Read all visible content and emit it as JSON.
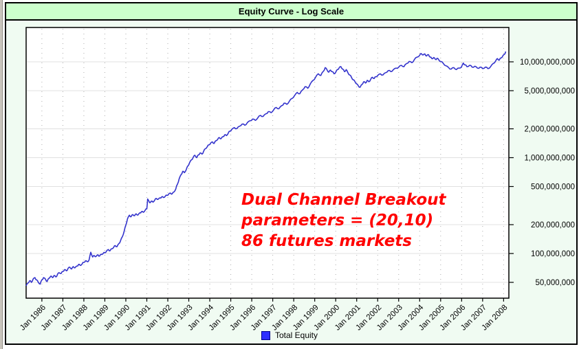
{
  "window": {
    "title": "Equity Curve - Log Scale"
  },
  "colors": {
    "title_bar_bg": "#ccffcc",
    "panel_bg": "#f0fbf2",
    "plot_bg": "#ffffff",
    "line": "#3333cc",
    "legend_swatch": "#2e2eff",
    "annotation_text": "#ff0000",
    "grid_major": "#e0e0e0",
    "grid_minor_dots": "#ababab",
    "axis": "#000000"
  },
  "annotation": {
    "lines": [
      "Dual Channel Breakout",
      "parameters = (20,10)",
      "86 futures markets"
    ]
  },
  "legend": {
    "label": "Total Equity"
  },
  "chart_data": {
    "type": "line",
    "title": "Equity Curve - Log Scale",
    "legend_position": "bottom-center",
    "grid": "on",
    "x_axis": {
      "start_year": 1985.25,
      "end_year": 2008.25,
      "tick_years": [
        1986,
        1987,
        1988,
        1989,
        1990,
        1991,
        1992,
        1993,
        1994,
        1995,
        1996,
        1997,
        1998,
        1999,
        2000,
        2001,
        2002,
        2003,
        2004,
        2005,
        2006,
        2007,
        2008
      ],
      "ticks": [
        "Jan 1986",
        "Jan 1987",
        "Jan 1988",
        "Jan 1989",
        "Jan 1990",
        "Jan 1991",
        "Jan 1992",
        "Jan 1993",
        "Jan 1994",
        "Jan 1995",
        "Jan 1996",
        "Jan 1997",
        "Jan 1998",
        "Jan 1999",
        "Jan 2000",
        "Jan 2001",
        "Jan 2002",
        "Jan 2003",
        "Jan 2004",
        "Jan 2005",
        "Jan 2006",
        "Jan 2007",
        "Jan 2008"
      ]
    },
    "y_axis": {
      "scale": "log",
      "unit": "USD",
      "range_usd": [
        40000000,
        15000000000
      ],
      "ticks": [
        {
          "value_musd": 10000,
          "label": "10,000,000,000"
        },
        {
          "value_musd": 5000,
          "label": "5,000,000,000"
        },
        {
          "value_musd": 2000,
          "label": "2,000,000,000"
        },
        {
          "value_musd": 1000,
          "label": "1,000,000,000"
        },
        {
          "value_musd": 500,
          "label": "500,000,000"
        },
        {
          "value_musd": 200,
          "label": "200,000,000"
        },
        {
          "value_musd": 100,
          "label": "100,000,000"
        },
        {
          "value_musd": 50,
          "label": "50,000,000"
        }
      ]
    },
    "series": [
      {
        "name": "Total Equity",
        "color": "#3333cc",
        "unit": "USD millions",
        "points": [
          [
            1985.25,
            46
          ],
          [
            1985.33,
            49
          ],
          [
            1985.42,
            52
          ],
          [
            1985.5,
            50
          ],
          [
            1985.58,
            54
          ],
          [
            1985.67,
            56
          ],
          [
            1985.75,
            53
          ],
          [
            1985.83,
            50
          ],
          [
            1985.92,
            48
          ],
          [
            1986,
            53
          ],
          [
            1986.08,
            56
          ],
          [
            1986.17,
            54
          ],
          [
            1986.25,
            51
          ],
          [
            1986.33,
            55
          ],
          [
            1986.42,
            58
          ],
          [
            1986.5,
            56
          ],
          [
            1986.58,
            59
          ],
          [
            1986.67,
            57
          ],
          [
            1986.75,
            61
          ],
          [
            1986.83,
            63
          ],
          [
            1986.92,
            62
          ],
          [
            1987,
            65
          ],
          [
            1987.08,
            68
          ],
          [
            1987.17,
            66
          ],
          [
            1987.25,
            70
          ],
          [
            1987.33,
            72
          ],
          [
            1987.42,
            69
          ],
          [
            1987.5,
            73
          ],
          [
            1987.58,
            71
          ],
          [
            1987.67,
            74
          ],
          [
            1987.75,
            77
          ],
          [
            1987.83,
            75
          ],
          [
            1987.92,
            78
          ],
          [
            1988,
            81
          ],
          [
            1988.08,
            84
          ],
          [
            1988.17,
            82
          ],
          [
            1988.25,
            86
          ],
          [
            1988.33,
            103
          ],
          [
            1988.42,
            92
          ],
          [
            1988.5,
            95
          ],
          [
            1988.58,
            93
          ],
          [
            1988.67,
            97
          ],
          [
            1988.75,
            94
          ],
          [
            1988.83,
            98
          ],
          [
            1988.92,
            100
          ],
          [
            1989,
            102
          ],
          [
            1989.08,
            106
          ],
          [
            1989.17,
            110
          ],
          [
            1989.25,
            107
          ],
          [
            1989.33,
            112
          ],
          [
            1989.42,
            116
          ],
          [
            1989.5,
            121
          ],
          [
            1989.58,
            118
          ],
          [
            1989.67,
            127
          ],
          [
            1989.75,
            136
          ],
          [
            1989.83,
            149
          ],
          [
            1989.92,
            170
          ],
          [
            1990,
            198
          ],
          [
            1990.08,
            230
          ],
          [
            1990.17,
            251
          ],
          [
            1990.25,
            242
          ],
          [
            1990.33,
            255
          ],
          [
            1990.42,
            248
          ],
          [
            1990.5,
            259
          ],
          [
            1990.58,
            252
          ],
          [
            1990.67,
            266
          ],
          [
            1990.75,
            274
          ],
          [
            1990.83,
            269
          ],
          [
            1990.92,
            283
          ],
          [
            1991,
            292
          ],
          [
            1991.04,
            370
          ],
          [
            1991.13,
            340
          ],
          [
            1991.21,
            352
          ],
          [
            1991.29,
            344
          ],
          [
            1991.38,
            362
          ],
          [
            1991.46,
            375
          ],
          [
            1991.54,
            368
          ],
          [
            1991.63,
            381
          ],
          [
            1991.71,
            390
          ],
          [
            1991.79,
            384
          ],
          [
            1991.88,
            396
          ],
          [
            1991.96,
            405
          ],
          [
            1992.04,
            416
          ],
          [
            1992.13,
            427
          ],
          [
            1992.21,
            420
          ],
          [
            1992.29,
            438
          ],
          [
            1992.38,
            470
          ],
          [
            1992.46,
            530
          ],
          [
            1992.54,
            600
          ],
          [
            1992.63,
            665
          ],
          [
            1992.71,
            720
          ],
          [
            1992.79,
            698
          ],
          [
            1992.88,
            752
          ],
          [
            1992.96,
            820
          ],
          [
            1993.04,
            890
          ],
          [
            1993.13,
            950
          ],
          [
            1993.21,
            1010
          ],
          [
            1993.29,
            1060
          ],
          [
            1993.38,
            1000
          ],
          [
            1993.46,
            1070
          ],
          [
            1993.54,
            1120
          ],
          [
            1993.63,
            1090
          ],
          [
            1993.71,
            1170
          ],
          [
            1993.79,
            1240
          ],
          [
            1993.88,
            1300
          ],
          [
            1993.96,
            1360
          ],
          [
            1994.04,
            1420
          ],
          [
            1994.13,
            1460
          ],
          [
            1994.21,
            1410
          ],
          [
            1994.29,
            1500
          ],
          [
            1994.38,
            1560
          ],
          [
            1994.46,
            1620
          ],
          [
            1994.54,
            1580
          ],
          [
            1994.63,
            1660
          ],
          [
            1994.71,
            1730
          ],
          [
            1994.79,
            1700
          ],
          [
            1994.88,
            1800
          ],
          [
            1994.96,
            1890
          ],
          [
            1995.04,
            1960
          ],
          [
            1995.17,
            2060
          ],
          [
            1995.29,
            2010
          ],
          [
            1995.42,
            2130
          ],
          [
            1995.54,
            2240
          ],
          [
            1995.67,
            2180
          ],
          [
            1995.79,
            2320
          ],
          [
            1995.92,
            2430
          ],
          [
            1996.04,
            2530
          ],
          [
            1996.17,
            2450
          ],
          [
            1996.29,
            2610
          ],
          [
            1996.42,
            2760
          ],
          [
            1996.54,
            2690
          ],
          [
            1996.67,
            2870
          ],
          [
            1996.79,
            3020
          ],
          [
            1996.92,
            2950
          ],
          [
            1997.04,
            3150
          ],
          [
            1997.17,
            3340
          ],
          [
            1997.29,
            3240
          ],
          [
            1997.42,
            3480
          ],
          [
            1997.54,
            3700
          ],
          [
            1997.67,
            3600
          ],
          [
            1997.79,
            3870
          ],
          [
            1997.92,
            4150
          ],
          [
            1998.04,
            4450
          ],
          [
            1998.17,
            4800
          ],
          [
            1998.29,
            4650
          ],
          [
            1998.42,
            5100
          ],
          [
            1998.54,
            5500
          ],
          [
            1998.67,
            5300
          ],
          [
            1998.79,
            5900
          ],
          [
            1998.92,
            6400
          ],
          [
            1999.04,
            6900
          ],
          [
            1999.17,
            7500
          ],
          [
            1999.29,
            7200
          ],
          [
            1999.42,
            8000
          ],
          [
            1999.5,
            8700
          ],
          [
            1999.58,
            8300
          ],
          [
            1999.67,
            7800
          ],
          [
            1999.75,
            8200
          ],
          [
            1999.83,
            7900
          ],
          [
            1999.92,
            7500
          ],
          [
            2000,
            7800
          ],
          [
            2000.08,
            8300
          ],
          [
            2000.17,
            8700
          ],
          [
            2000.25,
            8900
          ],
          [
            2000.33,
            8400
          ],
          [
            2000.42,
            7900
          ],
          [
            2000.5,
            8300
          ],
          [
            2000.58,
            7700
          ],
          [
            2000.67,
            7300
          ],
          [
            2000.75,
            6900
          ],
          [
            2000.83,
            6500
          ],
          [
            2000.92,
            6200
          ],
          [
            2001,
            5900
          ],
          [
            2001.08,
            5600
          ],
          [
            2001.17,
            5450
          ],
          [
            2001.25,
            5800
          ],
          [
            2001.33,
            6200
          ],
          [
            2001.42,
            6000
          ],
          [
            2001.5,
            6400
          ],
          [
            2001.58,
            6200
          ],
          [
            2001.67,
            6600
          ],
          [
            2001.75,
            6900
          ],
          [
            2001.83,
            6700
          ],
          [
            2001.92,
            7000
          ],
          [
            2002,
            7200
          ],
          [
            2002.13,
            7500
          ],
          [
            2002.25,
            7300
          ],
          [
            2002.38,
            7700
          ],
          [
            2002.5,
            8100
          ],
          [
            2002.63,
            7900
          ],
          [
            2002.75,
            8300
          ],
          [
            2002.88,
            8600
          ],
          [
            2003,
            8800
          ],
          [
            2003.13,
            9200
          ],
          [
            2003.25,
            8900
          ],
          [
            2003.38,
            9600
          ],
          [
            2003.5,
            10100
          ],
          [
            2003.63,
            9800
          ],
          [
            2003.75,
            10600
          ],
          [
            2003.88,
            11200
          ],
          [
            2004,
            11700
          ],
          [
            2004.08,
            12200
          ],
          [
            2004.17,
            11800
          ],
          [
            2004.25,
            12100
          ],
          [
            2004.33,
            11500
          ],
          [
            2004.42,
            11900
          ],
          [
            2004.5,
            11200
          ],
          [
            2004.58,
            10800
          ],
          [
            2004.67,
            11100
          ],
          [
            2004.75,
            10600
          ],
          [
            2004.83,
            10900
          ],
          [
            2004.92,
            10400
          ],
          [
            2005,
            10100
          ],
          [
            2005.13,
            9600
          ],
          [
            2005.25,
            9100
          ],
          [
            2005.38,
            8700
          ],
          [
            2005.5,
            8400
          ],
          [
            2005.63,
            8700
          ],
          [
            2005.75,
            8300
          ],
          [
            2005.88,
            8600
          ],
          [
            2006,
            8900
          ],
          [
            2006.08,
            9700
          ],
          [
            2006.17,
            9300
          ],
          [
            2006.25,
            8900
          ],
          [
            2006.38,
            9200
          ],
          [
            2006.5,
            8800
          ],
          [
            2006.63,
            9000
          ],
          [
            2006.75,
            8600
          ],
          [
            2006.88,
            8800
          ],
          [
            2007,
            8500
          ],
          [
            2007.13,
            8800
          ],
          [
            2007.25,
            8500
          ],
          [
            2007.38,
            8900
          ],
          [
            2007.5,
            9600
          ],
          [
            2007.63,
            10300
          ],
          [
            2007.71,
            10800
          ],
          [
            2007.79,
            10400
          ],
          [
            2007.88,
            11000
          ],
          [
            2007.96,
            11500
          ],
          [
            2008.04,
            12000
          ],
          [
            2008.1,
            12800
          ]
        ]
      }
    ]
  }
}
